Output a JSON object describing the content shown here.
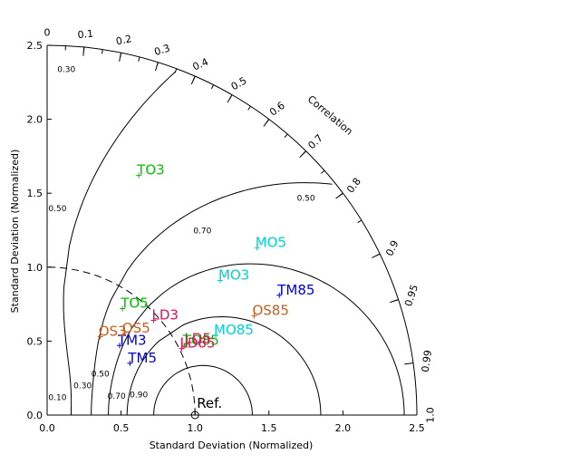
{
  "chart_data": {
    "type": "scatter",
    "subtype": "taylor-diagram",
    "title": "",
    "xlabel": "Standard Deviation (Normalized)",
    "ylabel": "Standard Deviation (Normalized)",
    "xlim": [
      0,
      2.5
    ],
    "ylim": [
      0,
      2.5
    ],
    "x_ticks": [
      "0.0",
      "0.5",
      "1.0",
      "1.5",
      "2.0",
      "2.5"
    ],
    "y_ticks": [
      "0.0",
      "0.5",
      "1.0",
      "1.5",
      "2.0",
      "2.5"
    ],
    "correlation_label": "Correlation",
    "correlation_ticks": [
      {
        "r": 0,
        "label": "0"
      },
      {
        "r": 0.1,
        "label": "0.1"
      },
      {
        "r": 0.2,
        "label": "0.2"
      },
      {
        "r": 0.3,
        "label": "0.3"
      },
      {
        "r": 0.4,
        "label": "0.4"
      },
      {
        "r": 0.5,
        "label": "0.5"
      },
      {
        "r": 0.6,
        "label": "0.6"
      },
      {
        "r": 0.7,
        "label": "0.7"
      },
      {
        "r": 0.8,
        "label": "0.8"
      },
      {
        "r": 0.9,
        "label": "0.9"
      },
      {
        "r": 0.95,
        "label": "0.95"
      },
      {
        "r": 0.99,
        "label": "0.99"
      },
      {
        "r": 1.0,
        "label": "1.0"
      }
    ],
    "contours": [
      {
        "value": 0.1,
        "label": "0.10"
      },
      {
        "value": 0.3,
        "label": "0.30"
      },
      {
        "value": 0.5,
        "label": "0.50"
      },
      {
        "value": 0.7,
        "label": "0.70"
      },
      {
        "value": 0.9,
        "label": "0.90"
      }
    ],
    "contour_label_texts": [
      {
        "text": "0.10",
        "x": 0.07,
        "y": 0.1
      },
      {
        "text": "0.30",
        "x": 0.24,
        "y": 0.18
      },
      {
        "text": "0.50",
        "x": 0.36,
        "y": 0.26
      },
      {
        "text": "0.70",
        "x": 0.47,
        "y": 0.11
      },
      {
        "text": "0.90",
        "x": 0.62,
        "y": 0.12
      },
      {
        "text": "0.70",
        "x": 1.05,
        "y": 1.23
      },
      {
        "text": "0.50",
        "x": 1.75,
        "y": 1.45
      },
      {
        "text": "0.50",
        "x": 0.07,
        "y": 1.38
      },
      {
        "text": "0.30",
        "x": 0.13,
        "y": 2.32
      }
    ],
    "reference": {
      "label": "Ref.",
      "x": 1.0,
      "y": 0.0
    },
    "points": [
      {
        "name": "TO3",
        "x": 0.62,
        "y": 1.62,
        "label_dx": 0.0,
        "label_dy": 0.0,
        "color": "#00c000"
      },
      {
        "name": "TO5",
        "x": 0.51,
        "y": 0.72,
        "label_dx": 0.0,
        "label_dy": 0.0,
        "color": "#00c000"
      },
      {
        "name": "TO85",
        "x": 0.93,
        "y": 0.47,
        "label_dx": 0.0,
        "label_dy": 0.0,
        "color": "#00c000"
      },
      {
        "name": "MO5",
        "x": 1.42,
        "y": 1.13,
        "label_dx": 0.0,
        "label_dy": 0.0,
        "color": "#00d0d0"
      },
      {
        "name": "MO3",
        "x": 1.17,
        "y": 0.91,
        "label_dx": 0.0,
        "label_dy": 0.0,
        "color": "#00d0d0"
      },
      {
        "name": "MO85",
        "x": 1.14,
        "y": 0.54,
        "label_dx": 0.0,
        "label_dy": 0.0,
        "color": "#00d0d0"
      },
      {
        "name": "TM85",
        "x": 1.57,
        "y": 0.81,
        "label_dx": 0.0,
        "label_dy": 0.0,
        "color": "#0000cc"
      },
      {
        "name": "TM3",
        "x": 0.49,
        "y": 0.47,
        "label_dx": 0.0,
        "label_dy": 0.0,
        "color": "#0000cc"
      },
      {
        "name": "TM5",
        "x": 0.56,
        "y": 0.35,
        "label_dx": 0.0,
        "label_dy": 0.0,
        "color": "#0000cc"
      },
      {
        "name": "OS85",
        "x": 1.4,
        "y": 0.67,
        "label_dx": 0.0,
        "label_dy": 0.0,
        "color": "#c06020"
      },
      {
        "name": "OS3",
        "x": 0.36,
        "y": 0.53,
        "label_dx": 0.0,
        "label_dy": 0.0,
        "color": "#c06020"
      },
      {
        "name": "OS5",
        "x": 0.52,
        "y": 0.55,
        "label_dx": 0.0,
        "label_dy": 0.0,
        "color": "#c06020"
      },
      {
        "name": "LD3",
        "x": 0.72,
        "y": 0.64,
        "label_dx": 0.0,
        "label_dy": 0.0,
        "color": "#e0105a"
      },
      {
        "name": "LD5",
        "x": 0.94,
        "y": 0.48,
        "label_dx": 0.0,
        "label_dy": 0.0,
        "color": "#e0105a"
      },
      {
        "name": "LD85",
        "x": 0.91,
        "y": 0.45,
        "label_dx": 0.0,
        "label_dy": 0.0,
        "color": "#e0105a"
      }
    ],
    "colors": {
      "axes": "#000000",
      "contour": "#000000",
      "reference_arc": "#000000"
    }
  }
}
